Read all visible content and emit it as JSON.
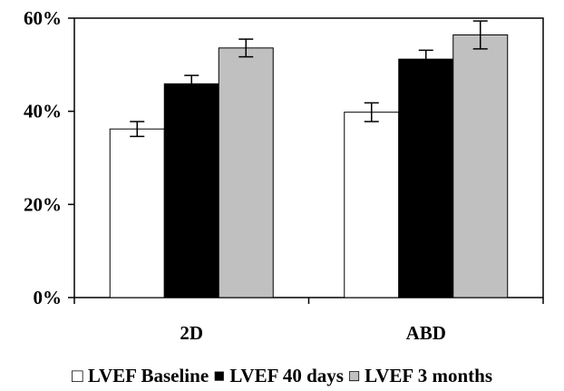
{
  "chart_data": {
    "type": "bar",
    "categories": [
      "2D",
      "ABD"
    ],
    "series": [
      {
        "name": "LVEF Baseline",
        "values": [
          36.2,
          39.8
        ],
        "errors": [
          1.6,
          2.0
        ],
        "color": "#ffffff"
      },
      {
        "name": "LVEF 40 days",
        "values": [
          45.9,
          51.2
        ],
        "errors": [
          1.8,
          1.9
        ],
        "color": "#000000"
      },
      {
        "name": "LVEF 3 months",
        "values": [
          53.6,
          56.4
        ],
        "errors": [
          1.9,
          3.0
        ],
        "color": "#c0c0c0"
      }
    ],
    "ylim": [
      0,
      60
    ],
    "yticks": [
      0,
      20,
      40,
      60
    ],
    "ytick_labels": [
      "0%",
      "20%",
      "40%",
      "60%"
    ],
    "xlabel": "",
    "ylabel": "",
    "title": "",
    "grid": false,
    "legend_position": "bottom",
    "legend_symbol": "□",
    "legend_symbol_filled": "■"
  }
}
